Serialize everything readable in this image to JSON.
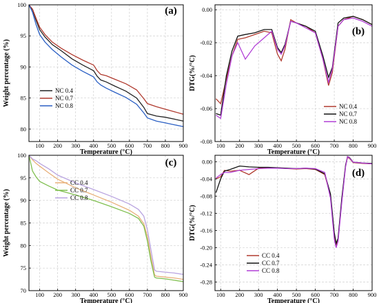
{
  "chart_data": [
    {
      "type": "line",
      "panel_label": "(a)",
      "xlabel": "Temperature (°C)",
      "ylabel": "Weight percentage (%)",
      "xlim": [
        40,
        900
      ],
      "ylim": [
        78,
        100
      ],
      "xticks": [
        100,
        200,
        300,
        400,
        500,
        600,
        700,
        800,
        900
      ],
      "yticks": [
        80,
        85,
        90,
        95,
        100
      ],
      "grid": true,
      "legend_position": "lower-left",
      "series": [
        {
          "name": "NC 0.4",
          "color": "#222222",
          "x": [
            40,
            60,
            80,
            100,
            130,
            170,
            220,
            280,
            340,
            400,
            420,
            440,
            470,
            520,
            580,
            640,
            680,
            700,
            750,
            800,
            850,
            900
          ],
          "y": [
            100,
            99.2,
            97.5,
            96.0,
            94.8,
            93.6,
            92.6,
            91.3,
            90.3,
            89.4,
            88.5,
            87.9,
            87.6,
            86.9,
            86.1,
            85.0,
            83.5,
            82.5,
            82.1,
            81.9,
            81.6,
            81.3
          ]
        },
        {
          "name": "NC 0.7",
          "color": "#b03a2e",
          "x": [
            40,
            60,
            80,
            100,
            130,
            170,
            220,
            280,
            340,
            400,
            420,
            440,
            470,
            520,
            580,
            640,
            680,
            700,
            750,
            800,
            850,
            900
          ],
          "y": [
            100,
            99.3,
            97.8,
            96.4,
            95.2,
            94.0,
            93.0,
            92.0,
            91.1,
            90.3,
            89.4,
            88.8,
            88.6,
            88.0,
            87.3,
            86.3,
            84.9,
            84.1,
            83.6,
            83.2,
            82.8,
            82.4
          ]
        },
        {
          "name": "NC 0.8",
          "color": "#2a5fc4",
          "x": [
            40,
            60,
            80,
            100,
            130,
            170,
            220,
            280,
            340,
            400,
            420,
            440,
            470,
            520,
            580,
            640,
            680,
            700,
            750,
            800,
            850,
            900
          ],
          "y": [
            100,
            98.8,
            96.8,
            95.2,
            94.0,
            92.8,
            91.6,
            90.3,
            89.3,
            88.4,
            87.6,
            87.1,
            86.6,
            85.9,
            85.1,
            84.0,
            82.6,
            81.8,
            81.3,
            81.0,
            80.7,
            80.4
          ]
        }
      ]
    },
    {
      "type": "line",
      "panel_label": "(b)",
      "xlabel": "Temperature (°C)",
      "ylabel": "DTG(%/°C)",
      "xlim": [
        70,
        900
      ],
      "ylim": [
        -0.08,
        0.003
      ],
      "xticks": [
        100,
        200,
        300,
        400,
        500,
        600,
        700,
        800,
        900
      ],
      "yticks": [
        0.0,
        -0.02,
        -0.04,
        -0.06,
        -0.08
      ],
      "ytick_labels": [
        "0.00",
        "-0.02",
        "-0.04",
        "-0.06",
        "-0.08"
      ],
      "grid": true,
      "legend_position": "lower-right",
      "series": [
        {
          "name": "NC 0.4",
          "color": "#b03a2e",
          "x": [
            75,
            100,
            130,
            160,
            190,
            230,
            280,
            330,
            370,
            400,
            420,
            440,
            470,
            500,
            550,
            600,
            640,
            670,
            690,
            720,
            750,
            800,
            850,
            900
          ],
          "y": [
            -0.054,
            -0.057,
            -0.042,
            -0.028,
            -0.018,
            -0.017,
            -0.015,
            -0.013,
            -0.014,
            -0.027,
            -0.031,
            -0.024,
            -0.006,
            -0.008,
            -0.01,
            -0.014,
            -0.03,
            -0.046,
            -0.038,
            -0.01,
            -0.006,
            -0.004,
            -0.006,
            -0.009
          ]
        },
        {
          "name": "NC 0.7",
          "color": "#111111",
          "x": [
            75,
            100,
            130,
            160,
            190,
            230,
            280,
            330,
            370,
            400,
            420,
            440,
            470,
            500,
            550,
            600,
            640,
            670,
            690,
            720,
            750,
            800,
            850,
            900
          ],
          "y": [
            -0.063,
            -0.064,
            -0.04,
            -0.025,
            -0.016,
            -0.015,
            -0.014,
            -0.012,
            -0.012,
            -0.023,
            -0.026,
            -0.021,
            -0.007,
            -0.008,
            -0.01,
            -0.013,
            -0.028,
            -0.041,
            -0.035,
            -0.008,
            -0.005,
            -0.004,
            -0.006,
            -0.009
          ]
        },
        {
          "name": "NC 0.8",
          "color": "#b13fd6",
          "x": [
            75,
            100,
            130,
            160,
            190,
            230,
            280,
            330,
            370,
            400,
            420,
            440,
            470,
            500,
            550,
            600,
            640,
            670,
            690,
            720,
            750,
            800,
            850,
            900
          ],
          "y": [
            -0.064,
            -0.066,
            -0.045,
            -0.028,
            -0.02,
            -0.03,
            -0.022,
            -0.017,
            -0.013,
            -0.024,
            -0.027,
            -0.022,
            -0.007,
            -0.008,
            -0.011,
            -0.014,
            -0.03,
            -0.044,
            -0.036,
            -0.01,
            -0.006,
            -0.005,
            -0.007,
            -0.01
          ]
        }
      ]
    },
    {
      "type": "line",
      "panel_label": "(c)",
      "xlabel": "Temperature (°C)",
      "ylabel": "Weight percentage (%)",
      "xlim": [
        40,
        900
      ],
      "ylim": [
        70,
        100
      ],
      "xticks": [
        100,
        200,
        300,
        400,
        500,
        600,
        700,
        800,
        900
      ],
      "yticks": [
        70,
        75,
        80,
        85,
        90,
        95,
        100
      ],
      "grid": true,
      "legend_position": "lower-left",
      "series": [
        {
          "name": "CC 0.4",
          "color": "#e8b07a",
          "x": [
            40,
            60,
            80,
            100,
            150,
            200,
            300,
            400,
            500,
            600,
            650,
            680,
            700,
            720,
            740,
            750,
            800,
            850,
            900
          ],
          "y": [
            100,
            99.0,
            98.2,
            97.6,
            96.1,
            94.7,
            92.8,
            91.2,
            89.6,
            87.8,
            86.5,
            84.8,
            82.0,
            77.5,
            73.5,
            73.2,
            73.0,
            72.8,
            72.5
          ]
        },
        {
          "name": "CC 0.7",
          "color": "#7fbf4f",
          "x": [
            40,
            60,
            80,
            100,
            150,
            200,
            300,
            400,
            500,
            600,
            650,
            680,
            700,
            720,
            740,
            750,
            800,
            850,
            900
          ],
          "y": [
            100,
            96.5,
            95.2,
            94.2,
            93.2,
            92.3,
            91.2,
            90.0,
            88.6,
            87.1,
            86.0,
            84.3,
            81.0,
            76.5,
            73.0,
            72.8,
            72.6,
            72.3,
            72.0
          ]
        },
        {
          "name": "CC 0.8",
          "color": "#b9a4e0",
          "x": [
            40,
            60,
            80,
            100,
            150,
            200,
            300,
            400,
            500,
            600,
            650,
            680,
            700,
            720,
            740,
            750,
            800,
            850,
            900
          ],
          "y": [
            100,
            99.2,
            98.8,
            98.2,
            97.0,
            95.6,
            93.9,
            92.4,
            90.9,
            89.2,
            88.0,
            86.5,
            83.5,
            79.0,
            74.6,
            74.3,
            74.1,
            73.9,
            73.6
          ]
        }
      ]
    },
    {
      "type": "line",
      "panel_label": "(d)",
      "xlabel": "Temperature (°C)",
      "ylabel": "DTG(%/°C)",
      "xlim": [
        70,
        900
      ],
      "ylim": [
        -0.3,
        0.015
      ],
      "xticks": [
        100,
        200,
        300,
        400,
        500,
        600,
        700,
        800,
        900
      ],
      "yticks": [
        0.0,
        -0.04,
        -0.08,
        -0.12,
        -0.16,
        -0.2,
        -0.24,
        -0.28
      ],
      "ytick_labels": [
        "0.00",
        "-0.04",
        "-0.08",
        "-0.12",
        "-0.16",
        "-0.20",
        "-0.24",
        "-0.28"
      ],
      "grid": true,
      "legend_position": "lower-left",
      "series": [
        {
          "name": "CC 0.4",
          "color": "#b03a2e",
          "x": [
            75,
            100,
            120,
            150,
            200,
            250,
            300,
            350,
            400,
            450,
            500,
            550,
            600,
            650,
            680,
            700,
            710,
            720,
            740,
            760,
            770,
            780,
            800,
            850,
            900
          ],
          "y": [
            -0.04,
            -0.035,
            -0.02,
            -0.022,
            -0.02,
            -0.03,
            -0.015,
            -0.014,
            -0.014,
            -0.016,
            -0.017,
            -0.016,
            -0.018,
            -0.03,
            -0.08,
            -0.17,
            -0.195,
            -0.18,
            -0.09,
            -0.01,
            0.01,
            0.008,
            -0.002,
            -0.004,
            -0.005
          ]
        },
        {
          "name": "CC 0.7",
          "color": "#111111",
          "x": [
            75,
            100,
            120,
            150,
            200,
            250,
            300,
            350,
            400,
            450,
            500,
            550,
            600,
            650,
            680,
            700,
            710,
            720,
            740,
            760,
            770,
            780,
            800,
            850,
            900
          ],
          "y": [
            -0.072,
            -0.04,
            -0.022,
            -0.018,
            -0.01,
            -0.012,
            -0.013,
            -0.013,
            -0.014,
            -0.015,
            -0.016,
            -0.015,
            -0.017,
            -0.028,
            -0.075,
            -0.165,
            -0.19,
            -0.178,
            -0.085,
            -0.008,
            0.012,
            0.01,
            -0.001,
            -0.003,
            -0.004
          ]
        },
        {
          "name": "CC 0.8",
          "color": "#b13fd6",
          "x": [
            75,
            100,
            120,
            150,
            200,
            250,
            300,
            350,
            400,
            450,
            500,
            550,
            600,
            650,
            680,
            700,
            710,
            720,
            740,
            760,
            770,
            780,
            800,
            850,
            900
          ],
          "y": [
            -0.038,
            -0.03,
            -0.025,
            -0.025,
            -0.02,
            -0.018,
            -0.016,
            -0.015,
            -0.015,
            -0.016,
            -0.016,
            -0.015,
            -0.016,
            -0.025,
            -0.085,
            -0.18,
            -0.2,
            -0.185,
            -0.095,
            -0.012,
            0.012,
            0.009,
            -0.001,
            -0.003,
            -0.005
          ]
        }
      ]
    }
  ]
}
